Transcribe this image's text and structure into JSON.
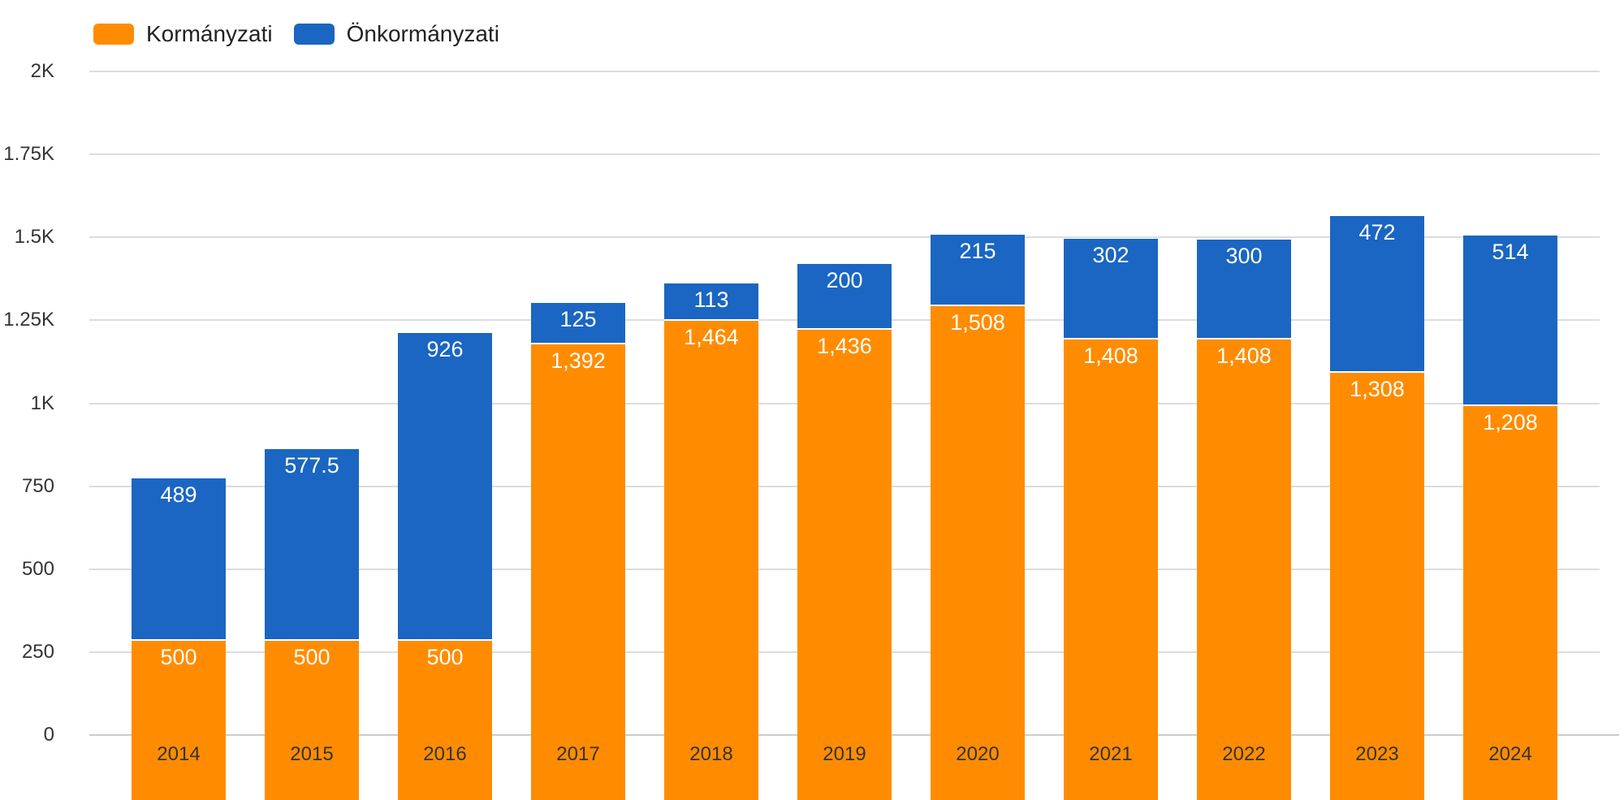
{
  "legend": {
    "items": [
      {
        "label": "Kormányzati",
        "color": "#FF8C00"
      },
      {
        "label": "Önkormányzati",
        "color": "#1A66C2"
      }
    ]
  },
  "chart_data": {
    "type": "bar",
    "stacked": true,
    "title": "",
    "xlabel": "",
    "ylabel": "",
    "grid": true,
    "legend_position": "top-left",
    "categories": [
      "2014",
      "2015",
      "2016",
      "2017",
      "2018",
      "2019",
      "2020",
      "2021",
      "2022",
      "2023",
      "2024"
    ],
    "series": [
      {
        "name": "Kormányzati",
        "color": "#FF8C00",
        "values": [
          500,
          500,
          500,
          1392,
          1464,
          1436,
          1508,
          1408,
          1408,
          1308,
          1208
        ],
        "labels": [
          "500",
          "500",
          "500",
          "1,392",
          "1,464",
          "1,436",
          "1,508",
          "1,408",
          "1,408",
          "1,308",
          "1,208"
        ]
      },
      {
        "name": "Önkormányzati",
        "color": "#1A66C2",
        "values": [
          489,
          577.5,
          926,
          125,
          113,
          200,
          215,
          302,
          300,
          472,
          514
        ],
        "labels": [
          "489",
          "577.5",
          "926",
          "125",
          "113",
          "200",
          "215",
          "302",
          "300",
          "472",
          "514"
        ]
      }
    ],
    "y_axis": {
      "min": 0,
      "max": 2000,
      "tick_values": [
        2000,
        1750,
        1500,
        1250,
        1000,
        750,
        500,
        250,
        0
      ],
      "tick_labels": [
        "2K",
        "1.75K",
        "1.5K",
        "1.25K",
        "1K",
        "750",
        "500",
        "250",
        "0"
      ]
    }
  },
  "colors": {
    "background": "#ffffff",
    "gridline": "#dcdcdc",
    "axis_line": "#cccccc",
    "axis_text": "#333333",
    "bar_label_text": "#ffffff"
  }
}
